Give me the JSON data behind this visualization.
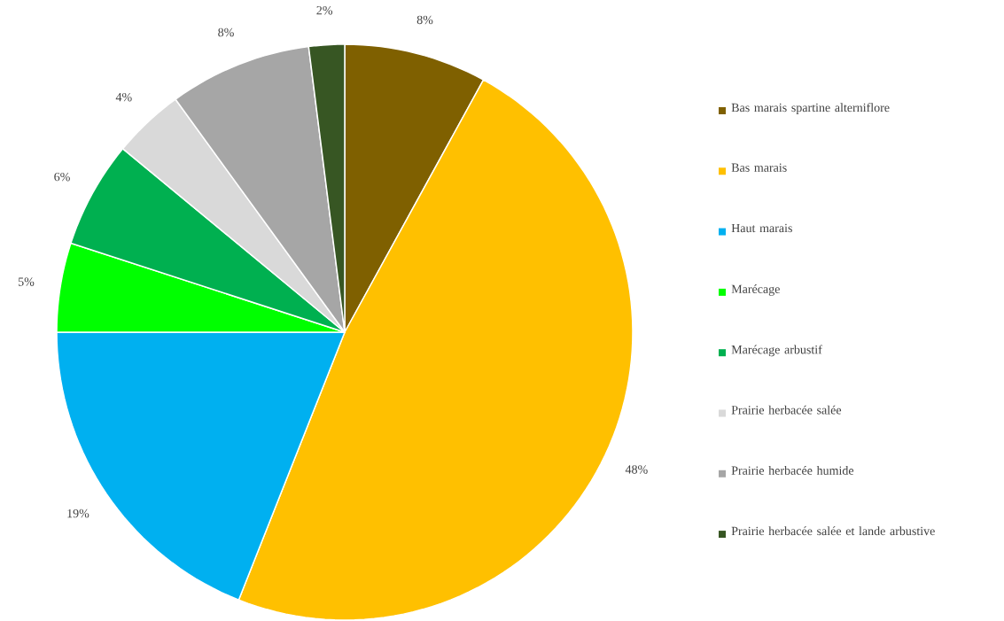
{
  "chart_data": {
    "type": "pie",
    "legend": "right",
    "categories": [
      "Bas marais spartine alterniflore",
      "Bas marais",
      "Haut marais",
      "Marécage",
      "Marécage arbustif",
      "Prairie herbacée salée",
      "Prairie herbacée humide",
      "Prairie herbacée salée et lande arbustive"
    ],
    "values": [
      8,
      48,
      19,
      5,
      6,
      4,
      8,
      2
    ],
    "value_labels": [
      "8%",
      "48%",
      "19%",
      "5%",
      "6%",
      "4%",
      "8%",
      "2%"
    ],
    "colors": [
      "#7f6000",
      "#ffc000",
      "#00b0f0",
      "#00ff00",
      "#00b050",
      "#d9d9d9",
      "#a6a6a6",
      "#375623"
    ]
  }
}
